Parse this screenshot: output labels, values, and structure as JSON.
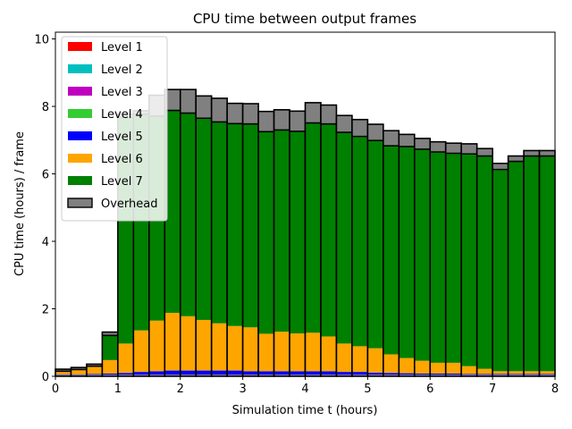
{
  "chart_data": {
    "type": "bar",
    "stacked": true,
    "title": "CPU time between output frames",
    "xlabel": "Simulation time t (hours)",
    "ylabel": "CPU time (hours) / frame",
    "xlim": [
      0,
      8
    ],
    "ylim": [
      0,
      10.2
    ],
    "xticks": [
      0,
      1,
      2,
      3,
      4,
      5,
      6,
      7,
      8
    ],
    "yticks": [
      0,
      2,
      4,
      6,
      8,
      10
    ],
    "bin_width": 0.25,
    "x": [
      0.125,
      0.375,
      0.625,
      0.875,
      1.125,
      1.375,
      1.625,
      1.875,
      2.125,
      2.375,
      2.625,
      2.875,
      3.125,
      3.375,
      3.625,
      3.875,
      4.125,
      4.375,
      4.625,
      4.875,
      5.125,
      5.375,
      5.625,
      5.875,
      6.125,
      6.375,
      6.625,
      6.875,
      7.125,
      7.375,
      7.625,
      7.875
    ],
    "legend_position": "top-left",
    "series": [
      {
        "name": "Level 1",
        "color": "#ff0000",
        "values": [
          0.02,
          0.02,
          0.02,
          0.02,
          0.02,
          0.02,
          0.02,
          0.02,
          0.02,
          0.02,
          0.02,
          0.02,
          0.02,
          0.02,
          0.02,
          0.02,
          0.02,
          0.02,
          0.02,
          0.02,
          0.02,
          0.02,
          0.02,
          0.02,
          0.02,
          0.02,
          0.02,
          0.02,
          0.02,
          0.02,
          0.02,
          0.02
        ]
      },
      {
        "name": "Level 2",
        "color": "#00bfbf",
        "values": [
          0.01,
          0.01,
          0.01,
          0.01,
          0.01,
          0.01,
          0.01,
          0.01,
          0.01,
          0.01,
          0.01,
          0.01,
          0.01,
          0.01,
          0.01,
          0.01,
          0.01,
          0.01,
          0.01,
          0.01,
          0.01,
          0.01,
          0.01,
          0.01,
          0.01,
          0.01,
          0.01,
          0.01,
          0.01,
          0.01,
          0.01,
          0.01
        ]
      },
      {
        "name": "Level 3",
        "color": "#bf00bf",
        "values": [
          0.01,
          0.01,
          0.01,
          0.01,
          0.01,
          0.01,
          0.01,
          0.01,
          0.01,
          0.01,
          0.01,
          0.01,
          0.01,
          0.01,
          0.01,
          0.01,
          0.01,
          0.01,
          0.01,
          0.01,
          0.01,
          0.01,
          0.01,
          0.01,
          0.01,
          0.01,
          0.01,
          0.01,
          0.01,
          0.01,
          0.01,
          0.01
        ]
      },
      {
        "name": "Level 4",
        "color": "#32cd32",
        "values": [
          0.01,
          0.01,
          0.01,
          0.01,
          0.01,
          0.01,
          0.01,
          0.01,
          0.01,
          0.01,
          0.01,
          0.01,
          0.01,
          0.01,
          0.01,
          0.01,
          0.01,
          0.01,
          0.01,
          0.01,
          0.01,
          0.01,
          0.01,
          0.01,
          0.01,
          0.01,
          0.01,
          0.01,
          0.01,
          0.01,
          0.01,
          0.01
        ]
      },
      {
        "name": "Level 5",
        "color": "#0000ff",
        "values": [
          0.01,
          0.01,
          0.02,
          0.03,
          0.05,
          0.08,
          0.1,
          0.12,
          0.12,
          0.12,
          0.12,
          0.12,
          0.1,
          0.1,
          0.1,
          0.1,
          0.1,
          0.1,
          0.08,
          0.08,
          0.06,
          0.05,
          0.04,
          0.03,
          0.03,
          0.03,
          0.02,
          0.02,
          0.02,
          0.02,
          0.02,
          0.02
        ]
      },
      {
        "name": "Level 6",
        "color": "#ffa500",
        "values": [
          0.09,
          0.14,
          0.23,
          0.4,
          0.87,
          1.23,
          1.5,
          1.71,
          1.61,
          1.5,
          1.4,
          1.32,
          1.3,
          1.11,
          1.17,
          1.12,
          1.14,
          1.03,
          0.84,
          0.76,
          0.72,
          0.55,
          0.45,
          0.38,
          0.32,
          0.32,
          0.23,
          0.15,
          0.08,
          0.08,
          0.08,
          0.08
        ]
      },
      {
        "name": "Level 7",
        "color": "#008000",
        "values": [
          0.0,
          0.0,
          0.0,
          0.73,
          6.7,
          6.41,
          6.06,
          6.0,
          6.02,
          5.98,
          5.97,
          6.0,
          6.03,
          5.99,
          5.98,
          5.99,
          6.22,
          6.3,
          6.26,
          6.22,
          6.16,
          6.18,
          6.27,
          6.27,
          6.25,
          6.21,
          6.29,
          6.31,
          5.98,
          6.22,
          6.38,
          6.38
        ]
      },
      {
        "name": "Overhead",
        "color": "#808080",
        "values": [
          0.06,
          0.06,
          0.06,
          0.1,
          0.1,
          0.1,
          0.62,
          0.62,
          0.7,
          0.66,
          0.7,
          0.6,
          0.6,
          0.6,
          0.6,
          0.6,
          0.6,
          0.56,
          0.5,
          0.5,
          0.48,
          0.45,
          0.36,
          0.32,
          0.3,
          0.3,
          0.3,
          0.22,
          0.18,
          0.16,
          0.16,
          0.16
        ]
      }
    ]
  }
}
